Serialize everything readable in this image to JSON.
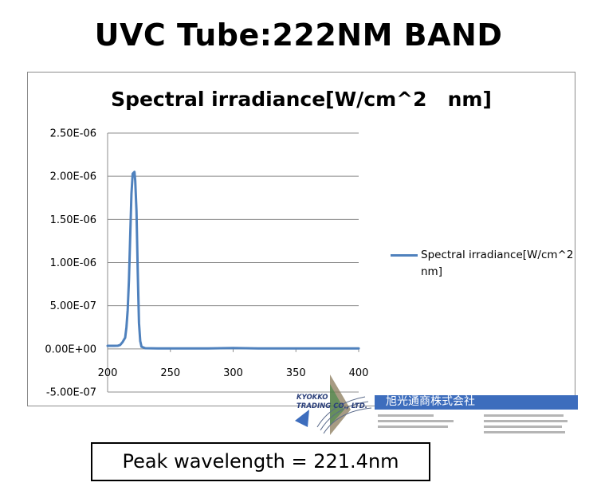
{
  "page_title": "UVC Tube:222NM BAND",
  "peak_label": "Peak wavelength = 221.4nm",
  "logo": {
    "english": "KYOKKO\nTRADING CO., LTD.",
    "japanese": "旭光通商株式会社"
  },
  "colors": {
    "series_line": "#4f81bd",
    "grid": "#8c8c8c",
    "logo_banner": "#3d6dbd"
  },
  "chart_data": {
    "type": "line",
    "title": "Spectral irradiance[W/cm^2   nm]",
    "xlabel": "",
    "ylabel": "",
    "xlim": [
      200,
      400
    ],
    "ylim": [
      -5e-07,
      2.5e-06
    ],
    "x_ticks": [
      "200",
      "250",
      "300",
      "350",
      "400"
    ],
    "y_ticks": [
      "-5.00E-07",
      "0.00E+00",
      "5.00E-07",
      "1.00E-06",
      "1.50E-06",
      "2.00E-06",
      "2.50E-06"
    ],
    "grid": "horizontal",
    "legend_position": "right",
    "series": [
      {
        "name": "Spectral irradiance[W/cm^2   nm]",
        "x": [
          200,
          205,
          208,
          210,
          212,
          214,
          215,
          216,
          217,
          218,
          219,
          220,
          221.4,
          222,
          223,
          224,
          225,
          226,
          227,
          230,
          240,
          260,
          280,
          300,
          320,
          340,
          360,
          380,
          400
        ],
        "y": [
          3.5e-08,
          3.5e-08,
          3.6e-08,
          4.5e-08,
          8e-08,
          1.3e-07,
          2.5e-07,
          4.5e-07,
          8e-07,
          1.3e-06,
          1.8e-06,
          2.03e-06,
          2.05e-06,
          1.95e-06,
          1.6e-06,
          9e-07,
          3e-07,
          9e-08,
          2.5e-08,
          8e-09,
          5e-09,
          5e-09,
          5e-09,
          1e-08,
          5e-09,
          5e-09,
          5e-09,
          5e-09,
          5e-09
        ]
      }
    ]
  }
}
